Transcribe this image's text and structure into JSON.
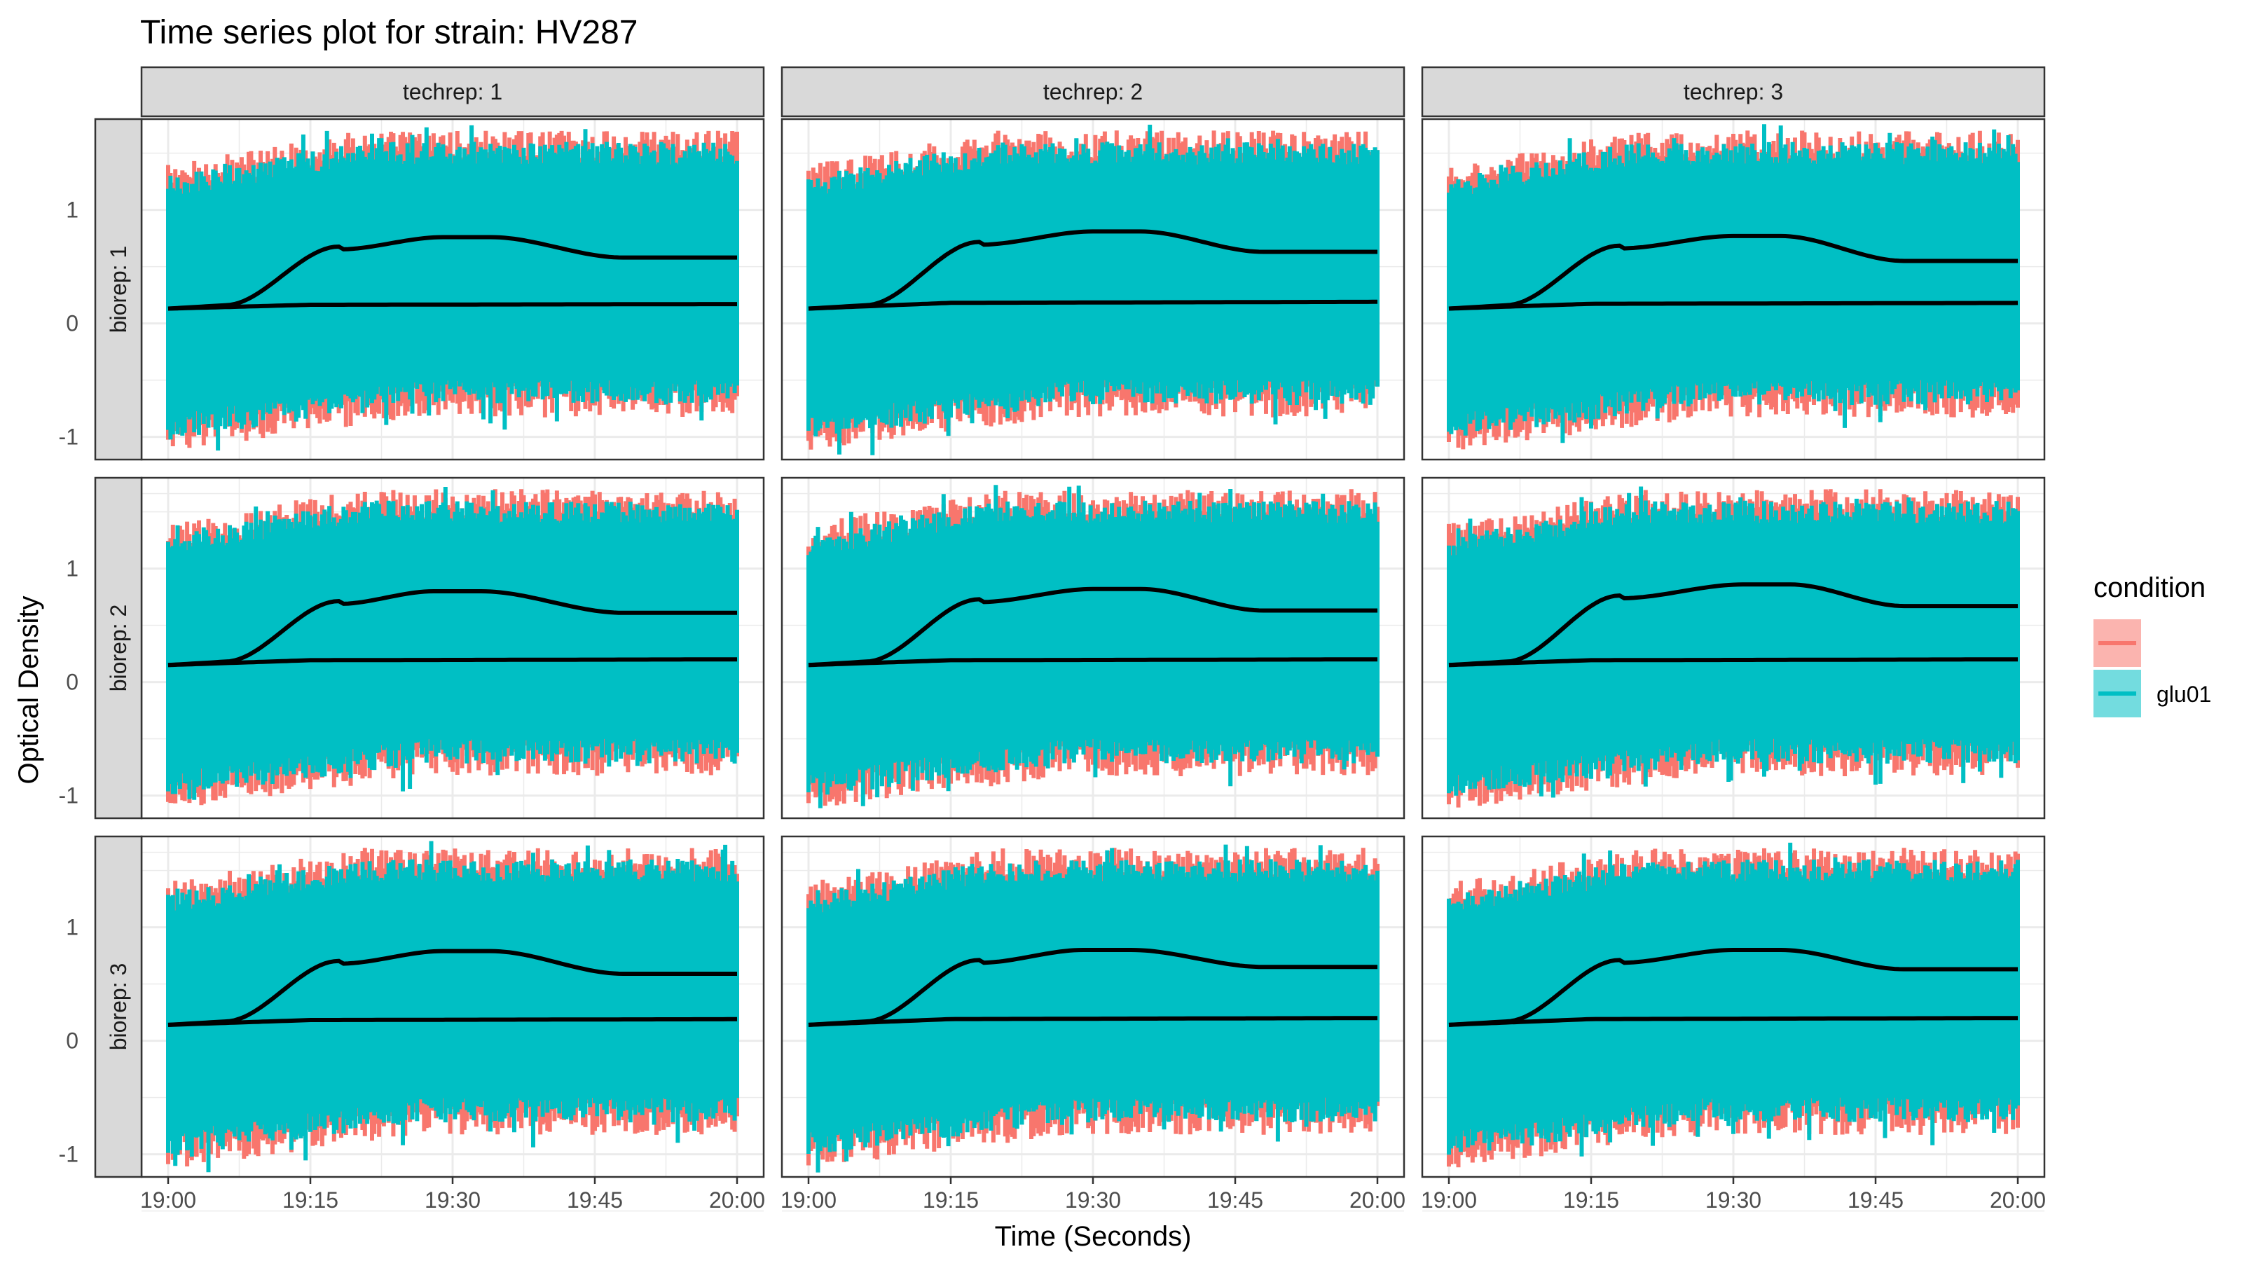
{
  "chart_data": {
    "type": "line",
    "title": "Time series plot for strain: HV287",
    "xlabel": "Time (Seconds)",
    "ylabel": "Optical Density",
    "x_ticks": [
      "19:00",
      "19:15",
      "19:30",
      "19:45",
      "20:00"
    ],
    "x_range_minutes": [
      0,
      60
    ],
    "y_ticks": [
      "-1",
      "0",
      "1"
    ],
    "ylim": [
      -1.2,
      1.8
    ],
    "grid": true,
    "legend": {
      "title": "condition",
      "position": "right",
      "entries": [
        {
          "label": "",
          "color": "#F8766D"
        },
        {
          "label": "glu01",
          "color": "#00BFC4"
        }
      ]
    },
    "col_facets": [
      "techrep: 1",
      "techrep: 2",
      "techrep: 3"
    ],
    "row_facets": [
      "biorep: 1",
      "biorep: 2",
      "biorep: 3"
    ],
    "noise_band": {
      "series_colors": [
        "#F8766D",
        "#00BFC4"
      ],
      "lower_start": -0.8,
      "lower_end": -0.5,
      "upper_start": 1.1,
      "upper_end": 1.4
    },
    "panels": [
      {
        "row": 0,
        "col": 0,
        "growth_curve": {
          "start": 0.13,
          "peak": 0.76,
          "peak_minute": 29,
          "end": 0.58
        },
        "baseline": {
          "start": 0.13,
          "end": 0.17
        }
      },
      {
        "row": 0,
        "col": 1,
        "growth_curve": {
          "start": 0.13,
          "peak": 0.81,
          "peak_minute": 30,
          "end": 0.63
        },
        "baseline": {
          "start": 0.13,
          "end": 0.19
        }
      },
      {
        "row": 0,
        "col": 2,
        "growth_curve": {
          "start": 0.13,
          "peak": 0.77,
          "peak_minute": 30,
          "end": 0.55
        },
        "baseline": {
          "start": 0.13,
          "end": 0.18
        }
      },
      {
        "row": 1,
        "col": 0,
        "growth_curve": {
          "start": 0.15,
          "peak": 0.8,
          "peak_minute": 28,
          "end": 0.61
        },
        "baseline": {
          "start": 0.15,
          "end": 0.2
        }
      },
      {
        "row": 1,
        "col": 1,
        "growth_curve": {
          "start": 0.15,
          "peak": 0.82,
          "peak_minute": 30,
          "end": 0.63
        },
        "baseline": {
          "start": 0.15,
          "end": 0.2
        }
      },
      {
        "row": 1,
        "col": 2,
        "growth_curve": {
          "start": 0.15,
          "peak": 0.86,
          "peak_minute": 31,
          "end": 0.67
        },
        "baseline": {
          "start": 0.15,
          "end": 0.2
        }
      },
      {
        "row": 2,
        "col": 0,
        "growth_curve": {
          "start": 0.14,
          "peak": 0.79,
          "peak_minute": 29,
          "end": 0.59
        },
        "baseline": {
          "start": 0.14,
          "end": 0.19
        }
      },
      {
        "row": 2,
        "col": 1,
        "growth_curve": {
          "start": 0.14,
          "peak": 0.8,
          "peak_minute": 29,
          "end": 0.65
        },
        "baseline": {
          "start": 0.14,
          "end": 0.2
        }
      },
      {
        "row": 2,
        "col": 2,
        "growth_curve": {
          "start": 0.14,
          "peak": 0.8,
          "peak_minute": 30,
          "end": 0.63
        },
        "baseline": {
          "start": 0.14,
          "end": 0.2
        }
      }
    ]
  }
}
